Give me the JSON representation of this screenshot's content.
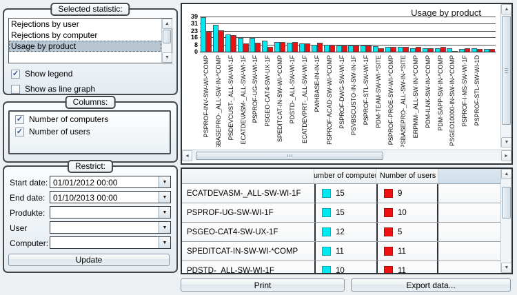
{
  "statistic_panel": {
    "caption": "Selected statistic:",
    "items": [
      "Rejections by user",
      "Rejections by computer",
      "Usage by product"
    ],
    "selected": "Usage by product",
    "show_legend": {
      "label": "Show legend",
      "checked": true
    },
    "show_line": {
      "label": "Show as line graph",
      "checked": false
    }
  },
  "columns_panel": {
    "caption": "Columns:",
    "options": [
      {
        "label": "Number of computers",
        "checked": true
      },
      {
        "label": "Number of users",
        "checked": true
      }
    ]
  },
  "restrict_panel": {
    "caption": "Restrict:",
    "fields": [
      {
        "label": "Start date:",
        "value": "01/01/2012 00:00"
      },
      {
        "label": "End date:",
        "value": "01/10/2013 00:00"
      },
      {
        "label": "Produkte:",
        "value": ""
      },
      {
        "label": "User",
        "value": ""
      },
      {
        "label": "Computer:",
        "value": ""
      }
    ],
    "update_label": "Update"
  },
  "chart_data": {
    "type": "bar",
    "title": "Usage by product",
    "yticks": [
      0,
      8,
      16,
      23,
      31,
      39
    ],
    "ylim": [
      0,
      39
    ],
    "grid": true,
    "legend_position": "none",
    "categories": [
      "PSPROF-INV-SW-WI-*COMP",
      "PSBASEPRO-_ALL-SW-IN-*COMP",
      "PSDEVCUST-_ALL-SW-WI-1F",
      "ECATDEVASM-_ALL-SW-WI-1F",
      "PSPROF-UG-SW-WI-1F",
      "PSGEO-CAT4-SW-UX-1F",
      "SPEDITCAT-IN-SW-WI-*COMP",
      "PDSTD-_ALL-SW-WI-1F",
      "ECATDEVPRT-_ALL-SW-WI-1F",
      "PWHBASE-IN-IN-1F",
      "PSPROF-ACAD-SW-WI-*COMP",
      "PSPROF-DWG-SW-WI-1F",
      "PSVBSCUSTO-IN-SW-IN-1F",
      "PSPROF-STL-SW-WI-1F",
      "PDM-TEAM-SW-WI-*SITE",
      "PSPROF-PROE-SW-WI-*COMP",
      "PSBASEPRO-_ALL-SW-IN-*SITE",
      "ERPMM-_ALL-SW-IN-*COMP",
      "PDM-ILNK-SW-IN-*COMP",
      "PDM-SAPP-SW-IN-*COMP",
      "PSGEO10000-IN-SW-IN-*COMP",
      "PSPROF-I-MS-SW-WI-1F",
      "PSPROF-STL-SW-WI-1D",
      ""
    ],
    "series": [
      {
        "name": "Number of computers",
        "color": "#00e8f0",
        "values": [
          38,
          30,
          19,
          15,
          15,
          12,
          11,
          10,
          9,
          8,
          8,
          7,
          7,
          7,
          6,
          5,
          5,
          4,
          4,
          4,
          4,
          3,
          4,
          3
        ]
      },
      {
        "name": "Number of users",
        "color": "#ee1111",
        "values": [
          22,
          24,
          18,
          9,
          10,
          5,
          11,
          11,
          9,
          10,
          8,
          7,
          7,
          7,
          4,
          5,
          5,
          5,
          4,
          5,
          1,
          4,
          3,
          3
        ]
      }
    ]
  },
  "table": {
    "computers_header": "Number of computers",
    "users_header": "Number of users",
    "rows": [
      {
        "product": "ECATDEVASM-_ALL-SW-WI-1F",
        "computers": 15,
        "users": 9
      },
      {
        "product": "PSPROF-UG-SW-WI-1F",
        "computers": 15,
        "users": 10
      },
      {
        "product": "PSGEO-CAT4-SW-UX-1F",
        "computers": 12,
        "users": 5
      },
      {
        "product": "SPEDITCAT-IN-SW-WI-*COMP",
        "computers": 11,
        "users": 11
      },
      {
        "product": "PDSTD-_ALL-SW-WI-1F",
        "computers": 10,
        "users": 11
      }
    ]
  },
  "footer": {
    "print": "Print",
    "export": "Export data..."
  }
}
